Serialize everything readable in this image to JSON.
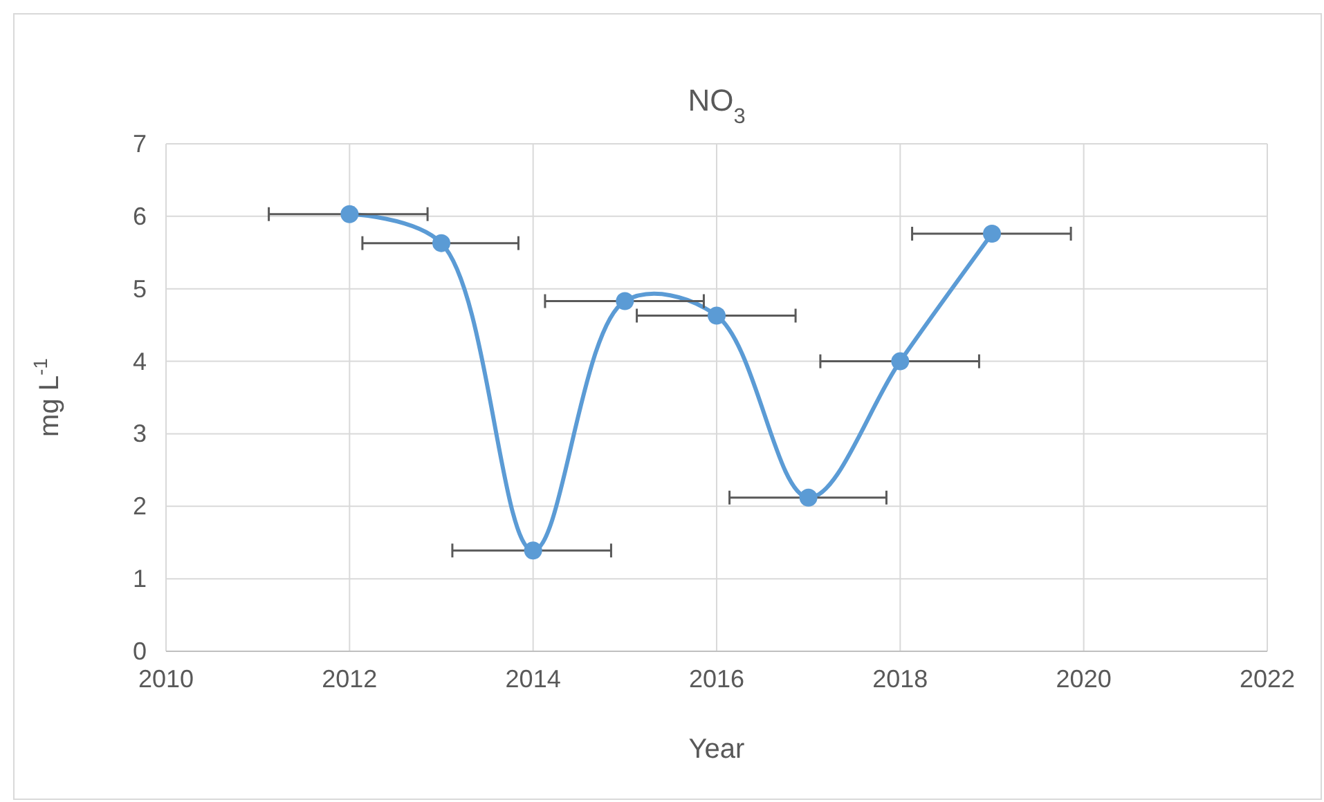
{
  "chart_data": {
    "type": "line",
    "title": "NO$_{3}$",
    "xlabel": "Year",
    "ylabel": "mg L$^{-1}$",
    "x": [
      2012,
      2013,
      2014,
      2015,
      2016,
      2017,
      2018,
      2019
    ],
    "series": [
      {
        "color": "#5b9bd5",
        "values": [
          6.03,
          5.63,
          1.39,
          4.83,
          4.63,
          2.12,
          4.0,
          5.76
        ],
        "xerrors": [
          [
            2011.12,
            2012.85
          ],
          [
            2012.14,
            2013.84
          ],
          [
            2013.12,
            2014.85
          ],
          [
            2014.13,
            2015.86
          ],
          [
            2015.13,
            2016.86
          ],
          [
            2016.14,
            2017.85
          ],
          [
            2017.13,
            2018.86
          ],
          [
            2018.13,
            2019.86
          ]
        ]
      }
    ],
    "xlim": [
      2010,
      2022
    ],
    "xticks": [
      2010,
      2012,
      2014,
      2016,
      2018,
      2020,
      2022
    ],
    "ylim": [
      0,
      7
    ],
    "yticks": [
      0,
      1,
      2,
      3,
      4,
      5,
      6,
      7
    ],
    "grid": true,
    "marker": "circle",
    "line_style": "solid"
  }
}
